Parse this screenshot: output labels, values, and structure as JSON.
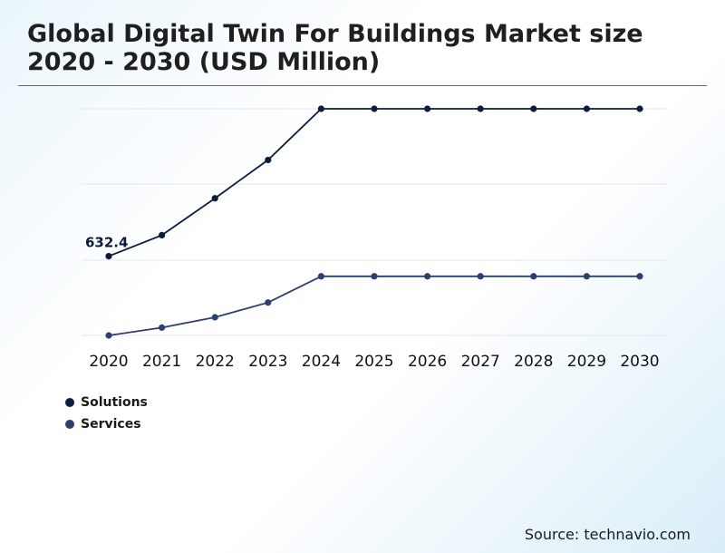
{
  "title": "Global Digital Twin For Buildings Market size 2020 - 2030 (USD Million)",
  "source": "Source: technavio.com",
  "colors": {
    "solutions": "#0d1b3e",
    "services": "#2e3f6e",
    "grid": "#e3e6ea"
  },
  "chart_data": {
    "type": "line",
    "title": "Global Digital Twin For Buildings Market size 2020 - 2030 (USD Million)",
    "categories": [
      "2020",
      "2021",
      "2022",
      "2023",
      "2024",
      "2025",
      "2026",
      "2027",
      "2028",
      "2029",
      "2030"
    ],
    "series": [
      {
        "name": "Solutions",
        "values": [
          632.4,
          775,
          1025,
          1285,
          1632,
          1632,
          1632,
          1632,
          1632,
          1632,
          1632
        ]
      },
      {
        "name": "Services",
        "values": [
          95,
          148,
          218,
          318,
          496,
          496,
          496,
          496,
          496,
          496,
          496
        ]
      }
    ],
    "data_labels": [
      {
        "series": "Solutions",
        "category": "2020",
        "text": "632.4"
      }
    ],
    "ylim": [
      95,
      1632
    ],
    "grid": true,
    "legend": "bottom-left"
  }
}
